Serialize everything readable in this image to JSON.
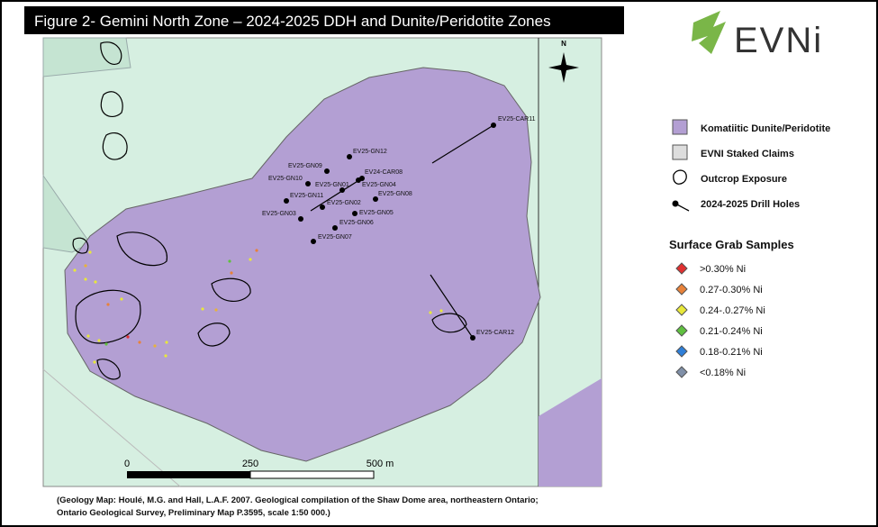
{
  "header": {
    "title": "Figure 2- Gemini North Zone – 2024-2025 DDH and Dunite/Peridotite Zones",
    "logo": "EVNi"
  },
  "map": {
    "north": "N",
    "drill_holes": [
      "EV25-CAR11",
      "EV25-GN12",
      "EV25-GN09",
      "EV24-CAR08",
      "EV25-GN10",
      "EV25-GN01",
      "EV25-GN04",
      "EV25-GN11",
      "EV25-GN08",
      "EV25-GN02",
      "EV25-GN03",
      "EV25-GN05",
      "EV25-GN06",
      "EV25-GN07",
      "EV25-CAR12"
    ],
    "scale_bar": [
      "0",
      "250",
      "500 m"
    ]
  },
  "legend": {
    "items": [
      "Komatiitic Dunite/Peridotite",
      "EVNI Staked Claims",
      "Outcrop Exposure",
      "2024-2025 Drill Holes"
    ],
    "samples_title": "Surface Grab Samples",
    "samples": [
      ">0.30% Ni",
      "0.27-0.30% Ni",
      "0.24-.0.27% Ni",
      "0.21-0.24% Ni",
      "0.18-0.21% Ni",
      "<0.18% Ni"
    ]
  },
  "citation": [
    "(Geology Map: Houlé, M.G. and Hall, L.A.F. 2007. Geological compilation of the Shaw Dome area, northeastern Ontario;",
    "Ontario Geological Survey, Preliminary Map P.3595, scale 1:50 000.)"
  ]
}
